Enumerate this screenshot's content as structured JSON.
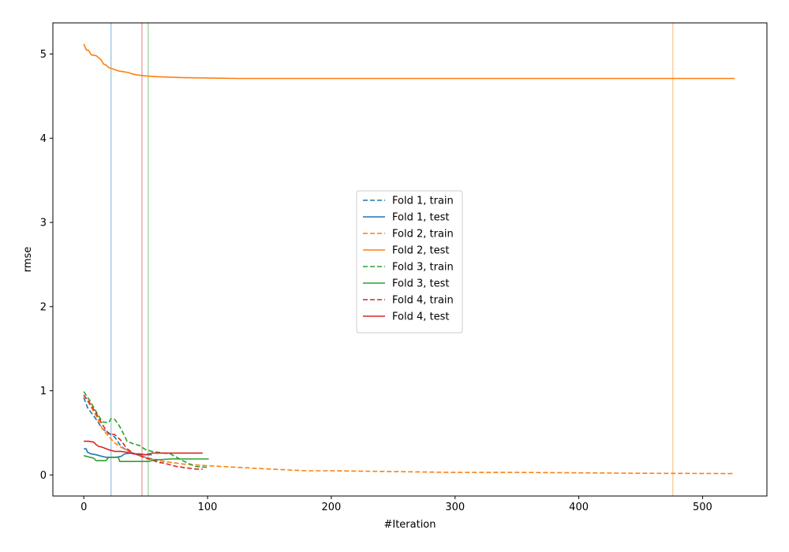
{
  "chart_data": {
    "type": "line",
    "title": "",
    "xlabel": "#Iteration",
    "ylabel": "rmse",
    "xlim": [
      -25,
      552
    ],
    "ylim": [
      -0.25,
      5.37
    ],
    "xticks": [
      0,
      100,
      200,
      300,
      400,
      500
    ],
    "yticks": [
      0,
      1,
      2,
      3,
      4,
      5
    ],
    "tick_labels_x": [
      "0",
      "100",
      "200",
      "300",
      "400",
      "500"
    ],
    "tick_labels_y": [
      "0",
      "1",
      "2",
      "3",
      "4",
      "5"
    ],
    "grid": false,
    "legend_position": "center",
    "vlines": [
      {
        "x": 22,
        "color": "#1f77b4"
      },
      {
        "x": 47,
        "color": "#d62728"
      },
      {
        "x": 52,
        "color": "#2ca02c"
      },
      {
        "x": 476,
        "color": "#ff7f0e"
      }
    ],
    "series": [
      {
        "name": "Fold 1, train",
        "color": "#1f77b4",
        "dashed": true,
        "x": [
          0,
          3,
          6,
          10,
          15,
          20,
          25,
          30,
          35,
          40,
          45,
          50,
          55,
          60
        ],
        "y": [
          0.92,
          0.8,
          0.74,
          0.66,
          0.55,
          0.5,
          0.45,
          0.34,
          0.29,
          0.26,
          0.23,
          0.21,
          0.19,
          0.18
        ]
      },
      {
        "name": "Fold 1, test",
        "color": "#1f77b4",
        "dashed": false,
        "x": [
          0,
          2,
          3,
          6,
          10,
          15,
          18,
          25,
          30,
          33,
          38,
          45,
          50,
          55
        ],
        "y": [
          0.31,
          0.31,
          0.27,
          0.25,
          0.24,
          0.22,
          0.21,
          0.21,
          0.22,
          0.25,
          0.26,
          0.24,
          0.24,
          0.24
        ]
      },
      {
        "name": "Fold 2, train",
        "color": "#ff7f0e",
        "dashed": true,
        "x": [
          0,
          5,
          10,
          15,
          20,
          25,
          30,
          40,
          50,
          60,
          70,
          80,
          100,
          125,
          150,
          180,
          200,
          250,
          300,
          350,
          400,
          450,
          500,
          526
        ],
        "y": [
          0.95,
          0.83,
          0.7,
          0.55,
          0.46,
          0.38,
          0.33,
          0.26,
          0.21,
          0.17,
          0.15,
          0.13,
          0.11,
          0.09,
          0.07,
          0.05,
          0.05,
          0.04,
          0.03,
          0.03,
          0.025,
          0.02,
          0.018,
          0.016
        ]
      },
      {
        "name": "Fold 2, test",
        "color": "#ff7f0e",
        "dashed": false,
        "x": [
          0,
          2,
          4,
          6,
          10,
          14,
          16,
          18,
          20,
          24,
          28,
          32,
          36,
          40,
          44,
          50,
          60,
          80,
          100,
          125,
          200,
          300,
          400,
          526
        ],
        "y": [
          5.12,
          5.05,
          5.04,
          4.99,
          4.98,
          4.93,
          4.88,
          4.87,
          4.84,
          4.82,
          4.8,
          4.79,
          4.78,
          4.76,
          4.75,
          4.74,
          4.73,
          4.72,
          4.715,
          4.71,
          4.71,
          4.71,
          4.71,
          4.71
        ]
      },
      {
        "name": "Fold 3, train",
        "color": "#2ca02c",
        "dashed": true,
        "x": [
          0,
          5,
          10,
          15,
          20,
          22,
          25,
          28,
          30,
          35,
          40,
          45,
          50,
          55,
          60,
          70,
          80,
          90,
          100
        ],
        "y": [
          0.99,
          0.88,
          0.75,
          0.63,
          0.62,
          0.67,
          0.66,
          0.6,
          0.55,
          0.4,
          0.37,
          0.35,
          0.3,
          0.28,
          0.27,
          0.25,
          0.17,
          0.1,
          0.09
        ]
      },
      {
        "name": "Fold 3, test",
        "color": "#2ca02c",
        "dashed": false,
        "x": [
          0,
          5,
          8,
          10,
          15,
          18,
          20,
          26,
          28,
          29,
          52,
          55,
          60,
          70,
          80,
          90,
          101
        ],
        "y": [
          0.23,
          0.21,
          0.2,
          0.17,
          0.17,
          0.17,
          0.21,
          0.21,
          0.21,
          0.16,
          0.16,
          0.17,
          0.18,
          0.19,
          0.19,
          0.19,
          0.19
        ]
      },
      {
        "name": "Fold 4, train",
        "color": "#d62728",
        "dashed": true,
        "x": [
          0,
          5,
          10,
          15,
          20,
          25,
          30,
          35,
          40,
          45,
          50,
          55,
          60,
          65,
          70,
          75,
          80,
          90,
          96
        ],
        "y": [
          0.95,
          0.85,
          0.73,
          0.6,
          0.49,
          0.48,
          0.41,
          0.31,
          0.26,
          0.23,
          0.2,
          0.18,
          0.15,
          0.14,
          0.12,
          0.1,
          0.09,
          0.07,
          0.07
        ]
      },
      {
        "name": "Fold 4, test",
        "color": "#d62728",
        "dashed": false,
        "x": [
          0,
          4,
          8,
          10,
          12,
          15,
          20,
          25,
          30,
          35,
          40,
          45,
          50,
          55,
          60,
          65,
          70,
          75,
          80,
          96
        ],
        "y": [
          0.4,
          0.4,
          0.39,
          0.36,
          0.34,
          0.33,
          0.3,
          0.28,
          0.28,
          0.27,
          0.25,
          0.25,
          0.24,
          0.26,
          0.26,
          0.26,
          0.26,
          0.26,
          0.26,
          0.26
        ]
      }
    ]
  }
}
